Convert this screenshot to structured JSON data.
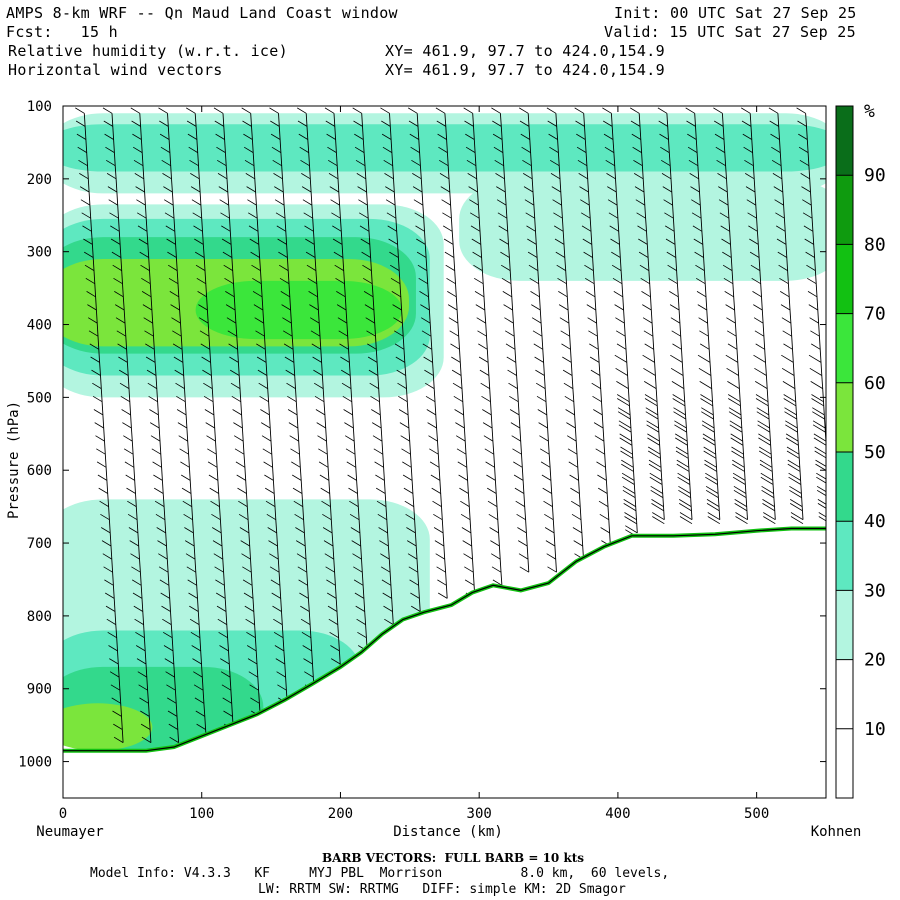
{
  "header": {
    "title": "AMPS 8-km WRF -- Qn Maud Land Coast window",
    "init": "Init: 00 UTC Sat 27 Sep 25",
    "fcst": "Fcst:   15 h",
    "valid": "Valid: 15 UTC Sat 27 Sep 25",
    "field1": "Relative humidity (w.r.t. ice)",
    "field2": "Horizontal wind vectors",
    "xy1": "XY= 461.9, 97.7 to 424.0,154.9",
    "xy2": "XY= 461.9, 97.7 to 424.0,154.9"
  },
  "footer": {
    "barb": "BARB VECTORS:  FULL BARB = 10 kts",
    "model": "Model Info: V4.3.3   KF     MYJ PBL  Morrison          8.0 km,  60 levels,",
    "physics": "LW: RRTM SW: RRTMG   DIFF: simple KM: 2D Smagor"
  },
  "chart_data": {
    "type": "heatmap",
    "xlabel": "Distance (km)",
    "ylabel": "Pressure (hPa)",
    "xlim": [
      0,
      550
    ],
    "ylim": [
      1050,
      100
    ],
    "x_ticks": [
      0,
      100,
      200,
      300,
      400,
      500
    ],
    "y_ticks": [
      100,
      200,
      300,
      400,
      500,
      600,
      700,
      800,
      900,
      1000
    ],
    "left_endpoint_label": "Neumayer",
    "right_endpoint_label": "Kohnen",
    "colorbar": {
      "unit": "%",
      "levels": [
        10,
        20,
        30,
        40,
        50,
        60,
        70,
        80,
        90
      ],
      "colors": [
        "#ffffff",
        "#ffffff",
        "#ffffff",
        "#b3f5e0",
        "#5ee8c0",
        "#33d98c",
        "#7be53c",
        "#3be63b",
        "#12c112",
        "#0f9b0f",
        "#0a6e1a"
      ]
    },
    "terrain_surface_hpa": [
      [
        0,
        985
      ],
      [
        30,
        985
      ],
      [
        60,
        985
      ],
      [
        80,
        980
      ],
      [
        100,
        965
      ],
      [
        120,
        950
      ],
      [
        140,
        935
      ],
      [
        160,
        915
      ],
      [
        180,
        893
      ],
      [
        200,
        870
      ],
      [
        215,
        850
      ],
      [
        230,
        825
      ],
      [
        245,
        805
      ],
      [
        260,
        795
      ],
      [
        280,
        785
      ],
      [
        295,
        768
      ],
      [
        310,
        758
      ],
      [
        330,
        765
      ],
      [
        350,
        755
      ],
      [
        370,
        725
      ],
      [
        390,
        705
      ],
      [
        410,
        690
      ],
      [
        440,
        690
      ],
      [
        470,
        688
      ],
      [
        500,
        683
      ],
      [
        525,
        680
      ],
      [
        550,
        680
      ]
    ],
    "rh_regions": [
      {
        "level": 30,
        "desc": "upper band",
        "x": [
          0,
          550
        ],
        "p": [
          110,
          220
        ]
      },
      {
        "level": 40,
        "desc": "upper band",
        "x": [
          0,
          550
        ],
        "p": [
          125,
          190
        ]
      },
      {
        "level": 30,
        "desc": "mid moist",
        "x": [
          0,
          260
        ],
        "p": [
          235,
          500
        ]
      },
      {
        "level": 40,
        "desc": "mid moist",
        "x": [
          0,
          250
        ],
        "p": [
          255,
          470
        ]
      },
      {
        "level": 50,
        "desc": "mid moist",
        "x": [
          0,
          240
        ],
        "p": [
          280,
          440
        ]
      },
      {
        "level": 60,
        "desc": "mid moist",
        "x": [
          0,
          235
        ],
        "p": [
          310,
          430
        ]
      },
      {
        "level": 70,
        "desc": "mid core",
        "x": [
          110,
          230
        ],
        "p": [
          340,
          420
        ]
      },
      {
        "level": 30,
        "desc": "low level",
        "x": [
          0,
          250
        ],
        "p": [
          640,
          985
        ]
      },
      {
        "level": 40,
        "desc": "low level",
        "x": [
          0,
          200
        ],
        "p": [
          820,
          985
        ]
      },
      {
        "level": 50,
        "desc": "low level",
        "x": [
          0,
          130
        ],
        "p": [
          870,
          985
        ]
      },
      {
        "level": 60,
        "desc": "low level",
        "x": [
          0,
          50
        ],
        "p": [
          920,
          985
        ]
      },
      {
        "level": 30,
        "desc": "right upper",
        "x": [
          300,
          550
        ],
        "p": [
          200,
          340
        ]
      }
    ]
  }
}
